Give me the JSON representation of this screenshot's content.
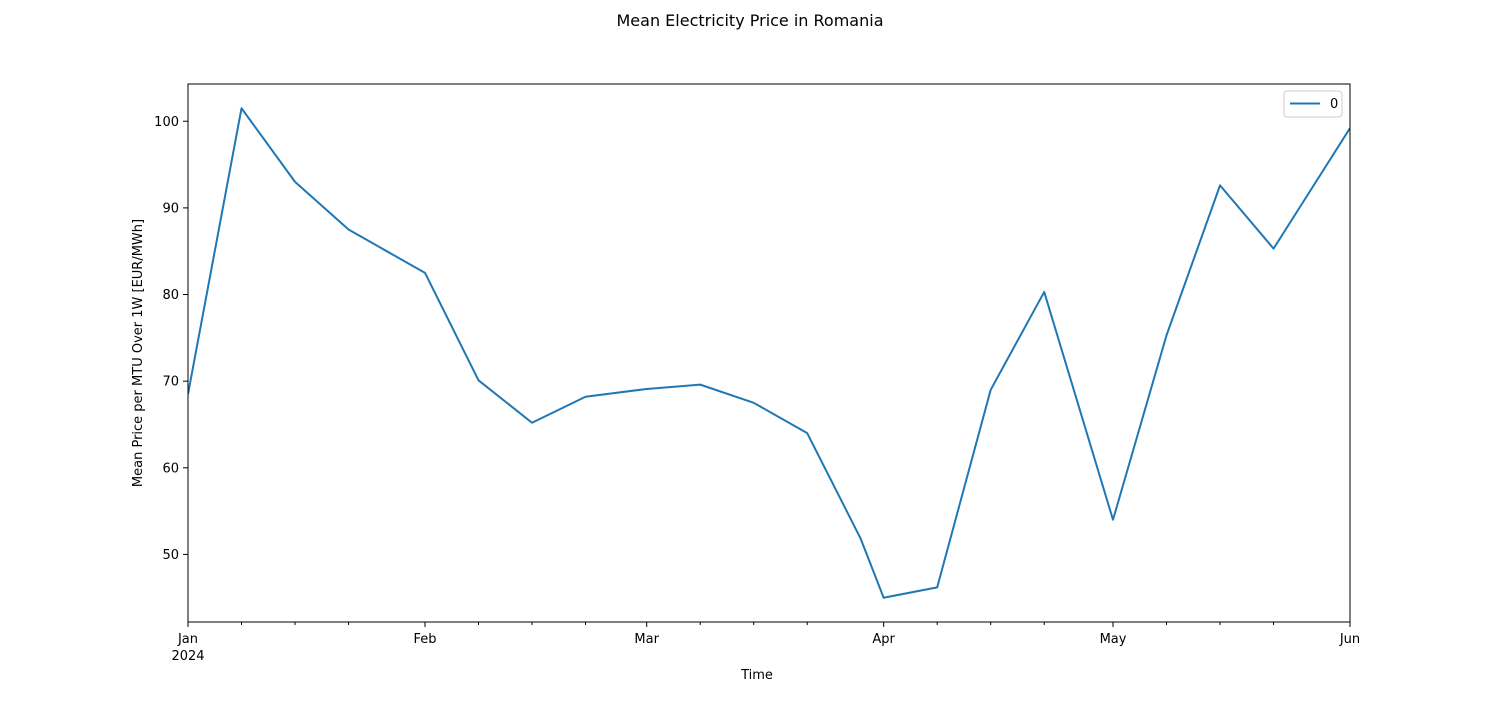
{
  "chart_data": {
    "type": "line",
    "title": "Mean Electricity Price in Romania",
    "xlabel": "Time",
    "ylabel": "Mean Price per MTU Over 1W [EUR/MWh]",
    "ylim": [
      42.2,
      104.3
    ],
    "yticks": [
      50,
      60,
      70,
      80,
      90,
      100
    ],
    "xlim": [
      "2024-01-01",
      "2024-06-01"
    ],
    "xticks_major": [
      {
        "date": "2024-01-01",
        "label": "Jan",
        "sublabel": "2024"
      },
      {
        "date": "2024-02-01",
        "label": "Feb",
        "sublabel": ""
      },
      {
        "date": "2024-03-01",
        "label": "Mar",
        "sublabel": ""
      },
      {
        "date": "2024-04-01",
        "label": "Apr",
        "sublabel": ""
      },
      {
        "date": "2024-05-01",
        "label": "May",
        "sublabel": ""
      },
      {
        "date": "2024-06-01",
        "label": "Jun",
        "sublabel": ""
      }
    ],
    "xticks_minor": [
      "2024-01-08",
      "2024-01-15",
      "2024-01-22",
      "2024-02-08",
      "2024-02-15",
      "2024-02-22",
      "2024-03-08",
      "2024-03-15",
      "2024-03-22",
      "2024-04-08",
      "2024-04-15",
      "2024-04-22",
      "2024-05-08",
      "2024-05-15",
      "2024-05-22"
    ],
    "legend": {
      "position": "top-right",
      "entries": [
        "0"
      ]
    },
    "grid": false,
    "series": [
      {
        "name": "0",
        "color": "#1f77b4",
        "x": [
          "2024-01-01",
          "2024-01-08",
          "2024-01-15",
          "2024-01-22",
          "2024-02-01",
          "2024-02-08",
          "2024-02-15",
          "2024-02-22",
          "2024-03-01",
          "2024-03-08",
          "2024-03-15",
          "2024-03-22",
          "2024-03-29",
          "2024-04-01",
          "2024-04-08",
          "2024-04-15",
          "2024-04-22",
          "2024-05-01",
          "2024-05-08",
          "2024-05-15",
          "2024-05-22",
          "2024-06-01"
        ],
        "values": [
          68.5,
          101.5,
          93.0,
          87.5,
          82.5,
          70.1,
          65.2,
          68.2,
          69.1,
          69.6,
          67.5,
          64.0,
          51.8,
          45.0,
          46.2,
          69.0,
          80.3,
          54.0,
          75.3,
          92.6,
          85.3,
          99.2
        ]
      }
    ]
  }
}
